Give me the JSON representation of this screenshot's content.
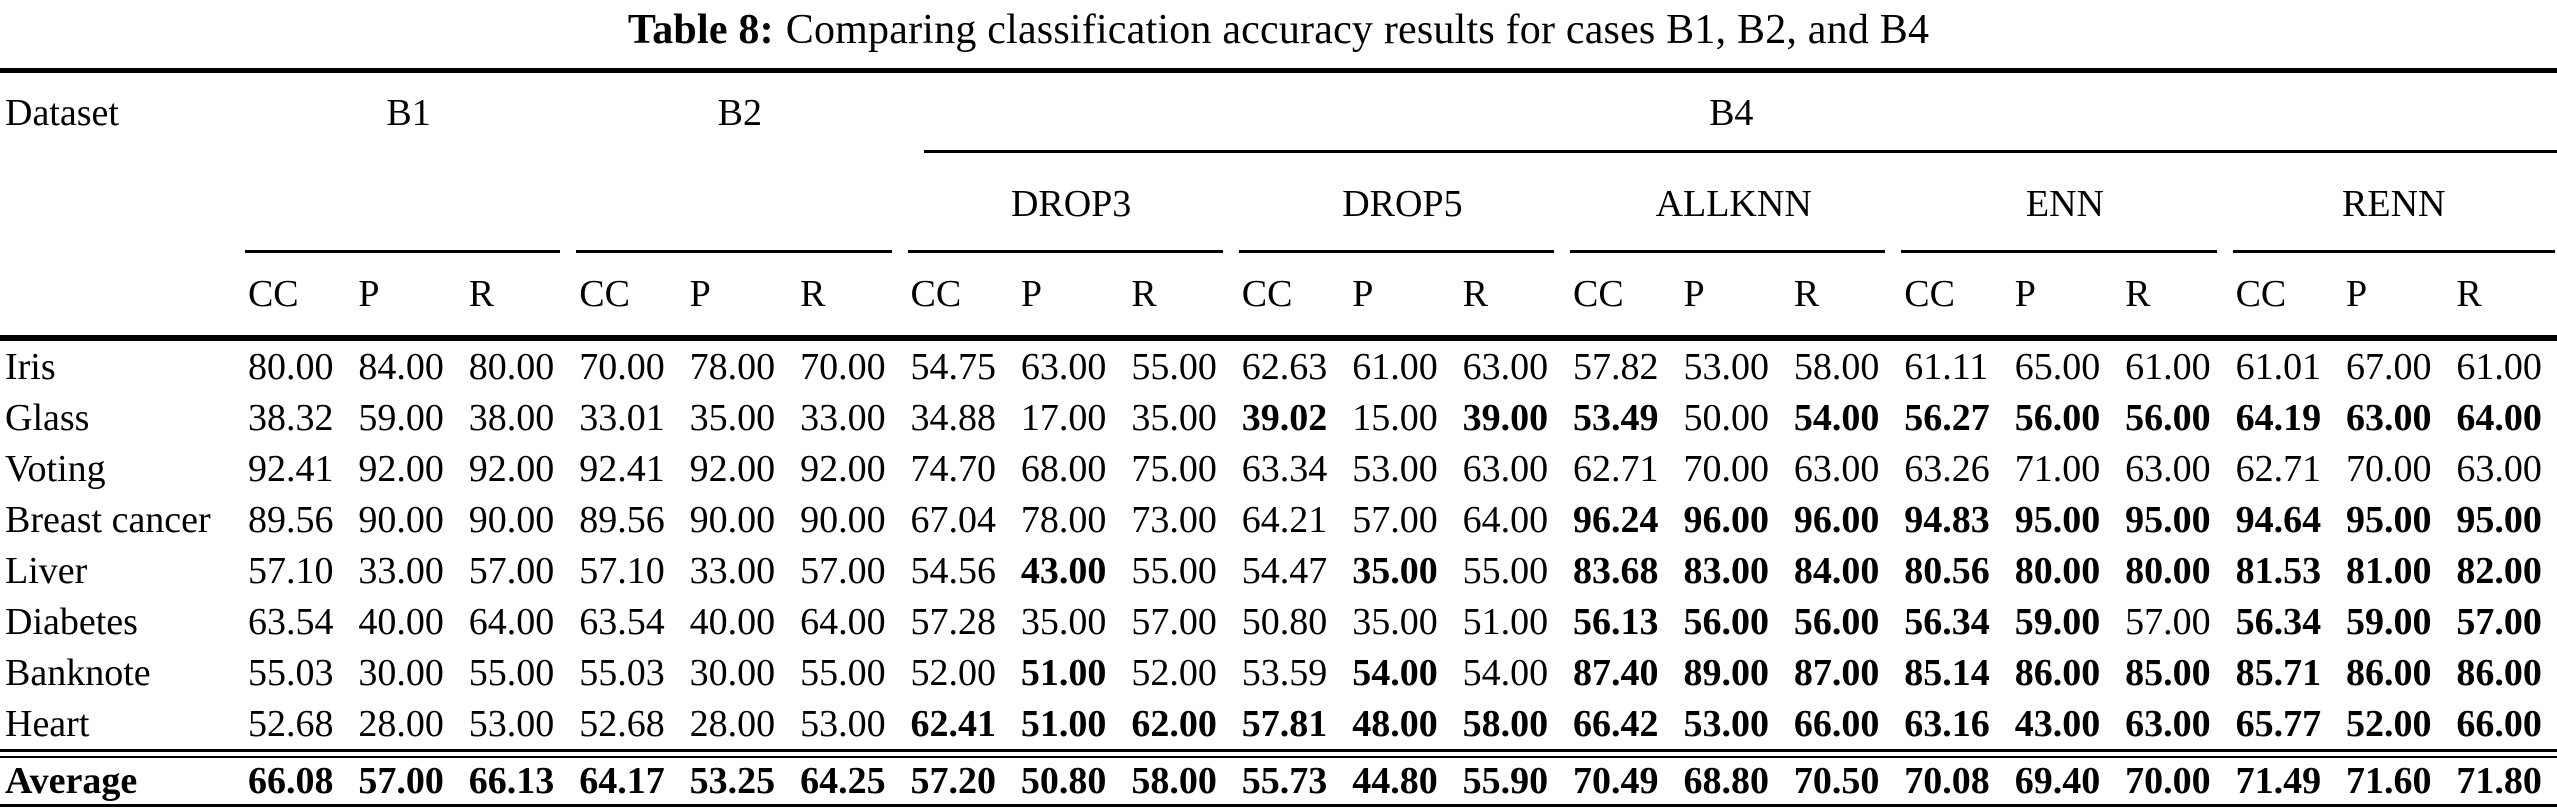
{
  "caption": {
    "label": "Table 8:",
    "text": "Comparing classification accuracy results for cases B1, B2, and B4"
  },
  "table": {
    "dataset_header": "Dataset",
    "group_headers": [
      "B1",
      "B2",
      "B4"
    ],
    "b4_methods": [
      "DROP3",
      "DROP5",
      "ALLKNN",
      "ENN",
      "RENN"
    ],
    "metric_headers": [
      "CC",
      "P",
      "R"
    ],
    "rows": [
      {
        "dataset": "Iris",
        "values": [
          "80.00",
          "84.00",
          "80.00",
          "70.00",
          "78.00",
          "70.00",
          "54.75",
          "63.00",
          "55.00",
          "62.63",
          "61.00",
          "63.00",
          "57.82",
          "53.00",
          "58.00",
          "61.11",
          "65.00",
          "61.00",
          "61.01",
          "67.00",
          "61.00"
        ],
        "bold": [
          0,
          0,
          0,
          0,
          0,
          0,
          0,
          0,
          0,
          0,
          0,
          0,
          0,
          0,
          0,
          0,
          0,
          0,
          0,
          0,
          0
        ]
      },
      {
        "dataset": "Glass",
        "values": [
          "38.32",
          "59.00",
          "38.00",
          "33.01",
          "35.00",
          "33.00",
          "34.88",
          "17.00",
          "35.00",
          "39.02",
          "15.00",
          "39.00",
          "53.49",
          "50.00",
          "54.00",
          "56.27",
          "56.00",
          "56.00",
          "64.19",
          "63.00",
          "64.00"
        ],
        "bold": [
          0,
          0,
          0,
          0,
          0,
          0,
          0,
          0,
          0,
          1,
          0,
          1,
          1,
          0,
          1,
          1,
          1,
          1,
          1,
          1,
          1
        ]
      },
      {
        "dataset": "Voting",
        "values": [
          "92.41",
          "92.00",
          "92.00",
          "92.41",
          "92.00",
          "92.00",
          "74.70",
          "68.00",
          "75.00",
          "63.34",
          "53.00",
          "63.00",
          "62.71",
          "70.00",
          "63.00",
          "63.26",
          "71.00",
          "63.00",
          "62.71",
          "70.00",
          "63.00"
        ],
        "bold": [
          0,
          0,
          0,
          0,
          0,
          0,
          0,
          0,
          0,
          0,
          0,
          0,
          0,
          0,
          0,
          0,
          0,
          0,
          0,
          0,
          0
        ]
      },
      {
        "dataset": "Breast cancer",
        "values": [
          "89.56",
          "90.00",
          "90.00",
          "89.56",
          "90.00",
          "90.00",
          "67.04",
          "78.00",
          "73.00",
          "64.21",
          "57.00",
          "64.00",
          "96.24",
          "96.00",
          "96.00",
          "94.83",
          "95.00",
          "95.00",
          "94.64",
          "95.00",
          "95.00"
        ],
        "bold": [
          0,
          0,
          0,
          0,
          0,
          0,
          0,
          0,
          0,
          0,
          0,
          0,
          1,
          1,
          1,
          1,
          1,
          1,
          1,
          1,
          1
        ]
      },
      {
        "dataset": "Liver",
        "values": [
          "57.10",
          "33.00",
          "57.00",
          "57.10",
          "33.00",
          "57.00",
          "54.56",
          "43.00",
          "55.00",
          "54.47",
          "35.00",
          "55.00",
          "83.68",
          "83.00",
          "84.00",
          "80.56",
          "80.00",
          "80.00",
          "81.53",
          "81.00",
          "82.00"
        ],
        "bold": [
          0,
          0,
          0,
          0,
          0,
          0,
          0,
          1,
          0,
          0,
          1,
          0,
          1,
          1,
          1,
          1,
          1,
          1,
          1,
          1,
          1
        ]
      },
      {
        "dataset": "Diabetes",
        "values": [
          "63.54",
          "40.00",
          "64.00",
          "63.54",
          "40.00",
          "64.00",
          "57.28",
          "35.00",
          "57.00",
          "50.80",
          "35.00",
          "51.00",
          "56.13",
          "56.00",
          "56.00",
          "56.34",
          "59.00",
          "57.00",
          "56.34",
          "59.00",
          "57.00"
        ],
        "bold": [
          0,
          0,
          0,
          0,
          0,
          0,
          0,
          0,
          0,
          0,
          0,
          0,
          1,
          1,
          1,
          1,
          1,
          0,
          1,
          1,
          1
        ]
      },
      {
        "dataset": "Banknote",
        "values": [
          "55.03",
          "30.00",
          "55.00",
          "55.03",
          "30.00",
          "55.00",
          "52.00",
          "51.00",
          "52.00",
          "53.59",
          "54.00",
          "54.00",
          "87.40",
          "89.00",
          "87.00",
          "85.14",
          "86.00",
          "85.00",
          "85.71",
          "86.00",
          "86.00"
        ],
        "bold": [
          0,
          0,
          0,
          0,
          0,
          0,
          0,
          1,
          0,
          0,
          1,
          0,
          1,
          1,
          1,
          1,
          1,
          1,
          1,
          1,
          1
        ]
      },
      {
        "dataset": "Heart",
        "values": [
          "52.68",
          "28.00",
          "53.00",
          "52.68",
          "28.00",
          "53.00",
          "62.41",
          "51.00",
          "62.00",
          "57.81",
          "48.00",
          "58.00",
          "66.42",
          "53.00",
          "66.00",
          "63.16",
          "43.00",
          "63.00",
          "65.77",
          "52.00",
          "66.00"
        ],
        "bold": [
          0,
          0,
          0,
          0,
          0,
          0,
          1,
          1,
          1,
          1,
          1,
          1,
          1,
          1,
          1,
          1,
          1,
          1,
          1,
          1,
          1
        ]
      }
    ],
    "average": {
      "label": "Average",
      "values": [
        "66.08",
        "57.00",
        "66.13",
        "64.17",
        "53.25",
        "64.25",
        "57.20",
        "50.80",
        "58.00",
        "55.73",
        "44.80",
        "55.90",
        "70.49",
        "68.80",
        "70.50",
        "70.08",
        "69.40",
        "70.00",
        "71.49",
        "71.60",
        "71.80"
      ]
    }
  }
}
